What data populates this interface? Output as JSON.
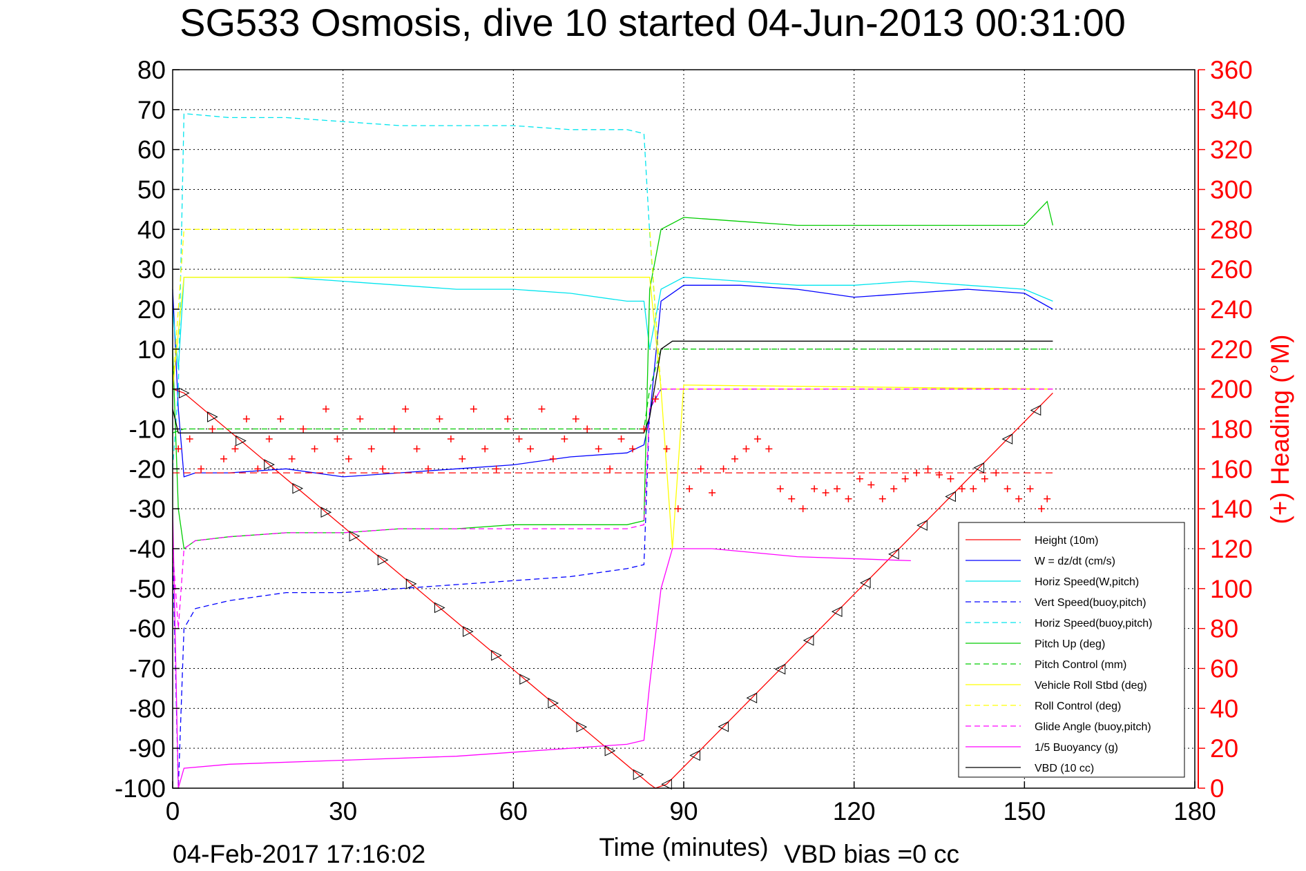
{
  "chart_data": {
    "type": "line",
    "title": "SG533 Osmosis, dive 10 started 04-Jun-2013 00:31:00",
    "xlabel": "Time (minutes)",
    "ylabel": "",
    "y2label": "(+) Heading (°M)",
    "xlim": [
      0,
      180
    ],
    "ylim": [
      -100,
      80
    ],
    "y2lim": [
      0,
      360
    ],
    "xticks": [
      "0",
      "30",
      "60",
      "90",
      "120",
      "150",
      "180"
    ],
    "yticks": [
      "80",
      "70",
      "60",
      "50",
      "40",
      "30",
      "20",
      "10",
      "0",
      "-10",
      "-20",
      "-30",
      "-40",
      "-50",
      "-60",
      "-70",
      "-80",
      "-90",
      "-100"
    ],
    "y2ticks": [
      "360",
      "340",
      "320",
      "300",
      "280",
      "260",
      "240",
      "220",
      "200",
      "180",
      "160",
      "140",
      "120",
      "100",
      "80",
      "60",
      "40",
      "20",
      "0"
    ],
    "grid": true,
    "legend_position": "bottom-right",
    "footer_left": "04-Feb-2017 17:16:02",
    "footer_right": "VBD bias =0 cc",
    "colors": {
      "red": "#ff0000",
      "blue": "#0000ff",
      "cyan": "#00e5ee",
      "green": "#00cc00",
      "yellow": "#ffff00",
      "magenta": "#ff00ff",
      "black": "#000000",
      "heading": "#ff0000"
    },
    "series": [
      {
        "name": "Height (10m)",
        "color": "red",
        "dash": false,
        "x": [
          0,
          2,
          84,
          85,
          87,
          155
        ],
        "y": [
          0,
          -1,
          -99,
          -100,
          -99,
          -1
        ]
      },
      {
        "name": "W = dz/dt (cm/s)",
        "color": "blue",
        "dash": false,
        "x": [
          0,
          1,
          2,
          4,
          10,
          20,
          30,
          40,
          50,
          60,
          70,
          80,
          83,
          84,
          86,
          90,
          100,
          110,
          120,
          130,
          140,
          150,
          155
        ],
        "y": [
          25,
          -5,
          -22,
          -21,
          -21,
          -20,
          -22,
          -21,
          -20,
          -19,
          -17,
          -16,
          -14,
          -7,
          22,
          26,
          26,
          25,
          23,
          24,
          25,
          24,
          20
        ]
      },
      {
        "name": "Horiz Speed(W,pitch)",
        "color": "cyan",
        "dash": false,
        "x": [
          0,
          1,
          2,
          10,
          20,
          30,
          40,
          50,
          60,
          70,
          80,
          83,
          84,
          86,
          90,
          100,
          110,
          120,
          130,
          140,
          150,
          155
        ],
        "y": [
          20,
          5,
          28,
          28,
          28,
          27,
          26,
          25,
          25,
          24,
          22,
          22,
          10,
          25,
          28,
          27,
          26,
          26,
          27,
          26,
          25,
          22
        ]
      },
      {
        "name": "Vert Speed(buoy,pitch)",
        "color": "blue",
        "dash": true,
        "x": [
          0,
          1,
          2,
          4,
          10,
          20,
          30,
          40,
          50,
          60,
          70,
          80,
          83,
          84,
          86,
          90,
          155
        ],
        "y": [
          -40,
          -100,
          -60,
          -55,
          -53,
          -51,
          -51,
          -50,
          -49,
          -48,
          -47,
          -45,
          -44,
          -5,
          0,
          0,
          0
        ]
      },
      {
        "name": "Horiz Speed(buoy,pitch)",
        "color": "cyan",
        "dash": true,
        "x": [
          0,
          1,
          2,
          10,
          20,
          30,
          40,
          50,
          60,
          70,
          80,
          83,
          84,
          86,
          155
        ],
        "y": [
          -20,
          0,
          69,
          68,
          68,
          67,
          66,
          66,
          66,
          65,
          65,
          64,
          39,
          0,
          0
        ]
      },
      {
        "name": "Pitch Up (deg)",
        "color": "green",
        "dash": false,
        "x": [
          0,
          1,
          2,
          4,
          10,
          20,
          30,
          40,
          50,
          60,
          70,
          80,
          83,
          84,
          86,
          90,
          100,
          110,
          120,
          130,
          140,
          150,
          154,
          155
        ],
        "y": [
          10,
          -30,
          -40,
          -38,
          -37,
          -36,
          -36,
          -35,
          -35,
          -34,
          -34,
          -34,
          -33,
          25,
          40,
          43,
          42,
          41,
          41,
          41,
          41,
          41,
          47,
          41
        ]
      },
      {
        "name": "Pitch Control (mm)",
        "color": "green",
        "dash": true,
        "x": [
          0,
          2,
          83,
          84,
          86,
          155
        ],
        "y": [
          -11,
          -10,
          -10,
          0,
          10,
          10
        ]
      },
      {
        "name": "Vehicle Roll Stbd (deg)",
        "color": "yellow",
        "dash": false,
        "x": [
          0,
          2,
          84,
          86,
          88,
          90,
          155
        ],
        "y": [
          0,
          28,
          28,
          0,
          -40,
          1,
          0
        ]
      },
      {
        "name": "Roll Control (deg)",
        "color": "yellow",
        "dash": true,
        "x": [
          0,
          2,
          84,
          86,
          155
        ],
        "y": [
          0,
          40,
          40,
          0,
          0
        ]
      },
      {
        "name": "Glide Angle (buoy,pitch)",
        "color": "magenta",
        "dash": true,
        "x": [
          0,
          1,
          2,
          4,
          10,
          20,
          30,
          40,
          50,
          60,
          70,
          80,
          83,
          84,
          86,
          155
        ],
        "y": [
          -40,
          -60,
          -40,
          -38,
          -37,
          -36,
          -36,
          -35,
          -35,
          -35,
          -35,
          -35,
          -34,
          -5,
          0,
          0
        ]
      },
      {
        "name": "1/5 Buoyancy (g)",
        "color": "magenta",
        "dash": false,
        "x": [
          0,
          1,
          2,
          10,
          30,
          50,
          70,
          80,
          83,
          84,
          86,
          88,
          95,
          110,
          130
        ],
        "y": [
          -30,
          -100,
          -95,
          -94,
          -93,
          -92,
          -90,
          -89,
          -88,
          -74,
          -50,
          -40,
          -40,
          -42,
          -43
        ]
      },
      {
        "name": "VBD (10 cc)",
        "color": "black",
        "dash": false,
        "x": [
          0,
          1,
          2,
          83,
          84,
          86,
          88,
          155
        ],
        "y": [
          -5,
          -11,
          -11,
          -11,
          -7,
          10,
          12,
          12
        ]
      }
    ],
    "heading_reference": 158,
    "heading_minutes": [
      1,
      3,
      5,
      7,
      9,
      11,
      13,
      15,
      17,
      19,
      21,
      23,
      25,
      27,
      29,
      31,
      33,
      35,
      37,
      39,
      41,
      43,
      45,
      47,
      49,
      51,
      53,
      55,
      57,
      59,
      61,
      63,
      65,
      67,
      69,
      71,
      73,
      75,
      77,
      79,
      81,
      83,
      85,
      87,
      89,
      91,
      93,
      95,
      97,
      99,
      101,
      103,
      105,
      107,
      109,
      111,
      113,
      115,
      117,
      119,
      121,
      123,
      125,
      127,
      129,
      131,
      133,
      135,
      137,
      139,
      141,
      143,
      145,
      147,
      149,
      151,
      153,
      154
    ],
    "heading_values": [
      170,
      175,
      160,
      180,
      165,
      170,
      185,
      160,
      175,
      185,
      165,
      180,
      170,
      190,
      175,
      165,
      185,
      170,
      160,
      180,
      190,
      170,
      160,
      185,
      175,
      165,
      190,
      170,
      160,
      185,
      175,
      170,
      190,
      165,
      175,
      185,
      180,
      170,
      160,
      175,
      170,
      180,
      195,
      170,
      140,
      150,
      160,
      148,
      160,
      165,
      170,
      175,
      170,
      150,
      145,
      140,
      150,
      148,
      150,
      145,
      155,
      152,
      145,
      150,
      155,
      158,
      160,
      157,
      155,
      150,
      150,
      155,
      158,
      150,
      145,
      150,
      140,
      145
    ]
  }
}
